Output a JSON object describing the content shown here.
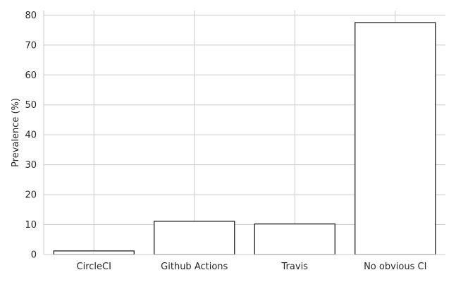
{
  "chart_data": {
    "type": "bar",
    "title": "",
    "xlabel": "",
    "ylabel": "Prevalence (%)",
    "categories": [
      "CircleCI",
      "Github Actions",
      "Travis",
      "No obvious CI"
    ],
    "values": [
      1.2,
      11.1,
      10.2,
      77.5
    ],
    "ylim": [
      0,
      81.5
    ],
    "yticks": [
      0,
      10,
      20,
      30,
      40,
      50,
      60,
      70,
      80
    ],
    "grid": true,
    "legend": "none",
    "colors": {
      "bar_fill": "#ffffff",
      "bar_edge": "#1a1a1a",
      "grid": "#cccccc",
      "text": "#262626"
    }
  }
}
